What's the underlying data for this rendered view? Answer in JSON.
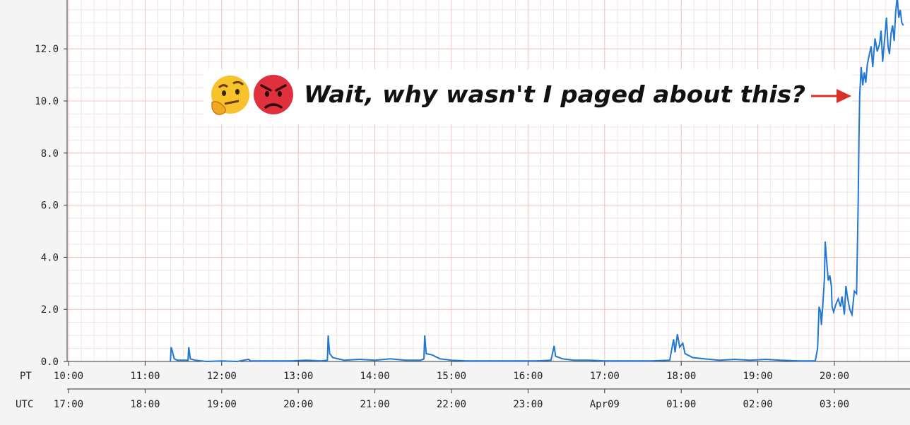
{
  "chart_data": {
    "type": "line",
    "ylim": [
      0,
      14
    ],
    "y_ticks": [
      "0.0",
      "2.0",
      "4.0",
      "6.0",
      "8.0",
      "10.0",
      "12.0"
    ],
    "grid": true,
    "x_axis_pt": {
      "name": "PT",
      "ticks": [
        "10:00",
        "11:00",
        "12:00",
        "13:00",
        "14:00",
        "15:00",
        "16:00",
        "17:00",
        "18:00",
        "19:00",
        "20:00"
      ]
    },
    "x_axis_utc": {
      "name": "UTC",
      "ticks": [
        "17:00",
        "18:00",
        "19:00",
        "20:00",
        "21:00",
        "22:00",
        "23:00",
        "Apr09",
        "01:00",
        "02:00",
        "03:00"
      ]
    },
    "annotation": {
      "text": "Wait, why wasn't I paged about this?",
      "emojis": [
        "thinking-face",
        "angry-face"
      ]
    },
    "series": [
      {
        "color": "#1f77d6",
        "points": [
          [
            11.33,
            0.0
          ],
          [
            11.34,
            0.55
          ],
          [
            11.36,
            0.35
          ],
          [
            11.38,
            0.1
          ],
          [
            11.42,
            0.05
          ],
          [
            11.56,
            0.05
          ],
          [
            11.57,
            0.55
          ],
          [
            11.59,
            0.1
          ],
          [
            11.65,
            0.05
          ],
          [
            11.8,
            0.0
          ],
          [
            12.0,
            0.02
          ],
          [
            12.2,
            0.0
          ],
          [
            12.35,
            0.08
          ],
          [
            12.38,
            0.02
          ],
          [
            12.6,
            0.02
          ],
          [
            12.9,
            0.02
          ],
          [
            13.1,
            0.05
          ],
          [
            13.3,
            0.02
          ],
          [
            13.38,
            0.05
          ],
          [
            13.39,
            1.0
          ],
          [
            13.41,
            0.3
          ],
          [
            13.45,
            0.15
          ],
          [
            13.6,
            0.05
          ],
          [
            13.8,
            0.08
          ],
          [
            14.0,
            0.05
          ],
          [
            14.2,
            0.1
          ],
          [
            14.4,
            0.05
          ],
          [
            14.6,
            0.05
          ],
          [
            14.64,
            0.1
          ],
          [
            14.65,
            1.0
          ],
          [
            14.67,
            0.3
          ],
          [
            14.75,
            0.25
          ],
          [
            14.85,
            0.1
          ],
          [
            15.0,
            0.05
          ],
          [
            15.2,
            0.02
          ],
          [
            15.5,
            0.02
          ],
          [
            15.8,
            0.02
          ],
          [
            16.1,
            0.02
          ],
          [
            16.3,
            0.05
          ],
          [
            16.34,
            0.6
          ],
          [
            16.36,
            0.2
          ],
          [
            16.45,
            0.1
          ],
          [
            16.6,
            0.05
          ],
          [
            16.8,
            0.05
          ],
          [
            17.0,
            0.02
          ],
          [
            17.3,
            0.02
          ],
          [
            17.6,
            0.02
          ],
          [
            17.85,
            0.05
          ],
          [
            17.9,
            0.85
          ],
          [
            17.92,
            0.35
          ],
          [
            17.95,
            1.05
          ],
          [
            17.98,
            0.55
          ],
          [
            18.02,
            0.7
          ],
          [
            18.05,
            0.3
          ],
          [
            18.15,
            0.15
          ],
          [
            18.3,
            0.1
          ],
          [
            18.5,
            0.05
          ],
          [
            18.7,
            0.08
          ],
          [
            18.9,
            0.05
          ],
          [
            19.1,
            0.08
          ],
          [
            19.3,
            0.05
          ],
          [
            19.55,
            0.02
          ],
          [
            19.75,
            0.02
          ],
          [
            19.78,
            0.5
          ],
          [
            19.8,
            2.1
          ],
          [
            19.82,
            1.9
          ],
          [
            19.83,
            1.4
          ],
          [
            19.85,
            2.2
          ],
          [
            19.87,
            3.2
          ],
          [
            19.88,
            4.6
          ],
          [
            19.9,
            3.8
          ],
          [
            19.92,
            3.1
          ],
          [
            19.94,
            3.3
          ],
          [
            19.96,
            2.9
          ],
          [
            19.97,
            2.1
          ],
          [
            19.99,
            1.9
          ],
          [
            20.02,
            2.2
          ],
          [
            20.05,
            2.4
          ],
          [
            20.08,
            2.1
          ],
          [
            20.1,
            2.5
          ],
          [
            20.13,
            1.8
          ],
          [
            20.15,
            2.9
          ],
          [
            20.17,
            2.5
          ],
          [
            20.2,
            2.0
          ],
          [
            20.23,
            1.8
          ],
          [
            20.26,
            2.7
          ],
          [
            20.29,
            2.6
          ],
          [
            20.31,
            6.0
          ],
          [
            20.32,
            8.5
          ],
          [
            20.33,
            10.2
          ],
          [
            20.35,
            11.3
          ],
          [
            20.37,
            10.6
          ],
          [
            20.39,
            11.1
          ],
          [
            20.41,
            10.7
          ],
          [
            20.43,
            11.4
          ],
          [
            20.45,
            11.7
          ],
          [
            20.48,
            12.1
          ],
          [
            20.5,
            11.3
          ],
          [
            20.53,
            12.4
          ],
          [
            20.56,
            11.9
          ],
          [
            20.59,
            12.2
          ],
          [
            20.61,
            12.7
          ],
          [
            20.63,
            11.5
          ],
          [
            20.66,
            12.5
          ],
          [
            20.68,
            13.2
          ],
          [
            20.7,
            12.1
          ],
          [
            20.72,
            11.8
          ],
          [
            20.74,
            12.6
          ],
          [
            20.76,
            12.9
          ],
          [
            20.78,
            12.3
          ],
          [
            20.8,
            13.4
          ],
          [
            20.82,
            14.0
          ],
          [
            20.84,
            13.2
          ],
          [
            20.86,
            13.5
          ],
          [
            20.88,
            13.0
          ],
          [
            20.9,
            12.9
          ]
        ]
      }
    ]
  }
}
